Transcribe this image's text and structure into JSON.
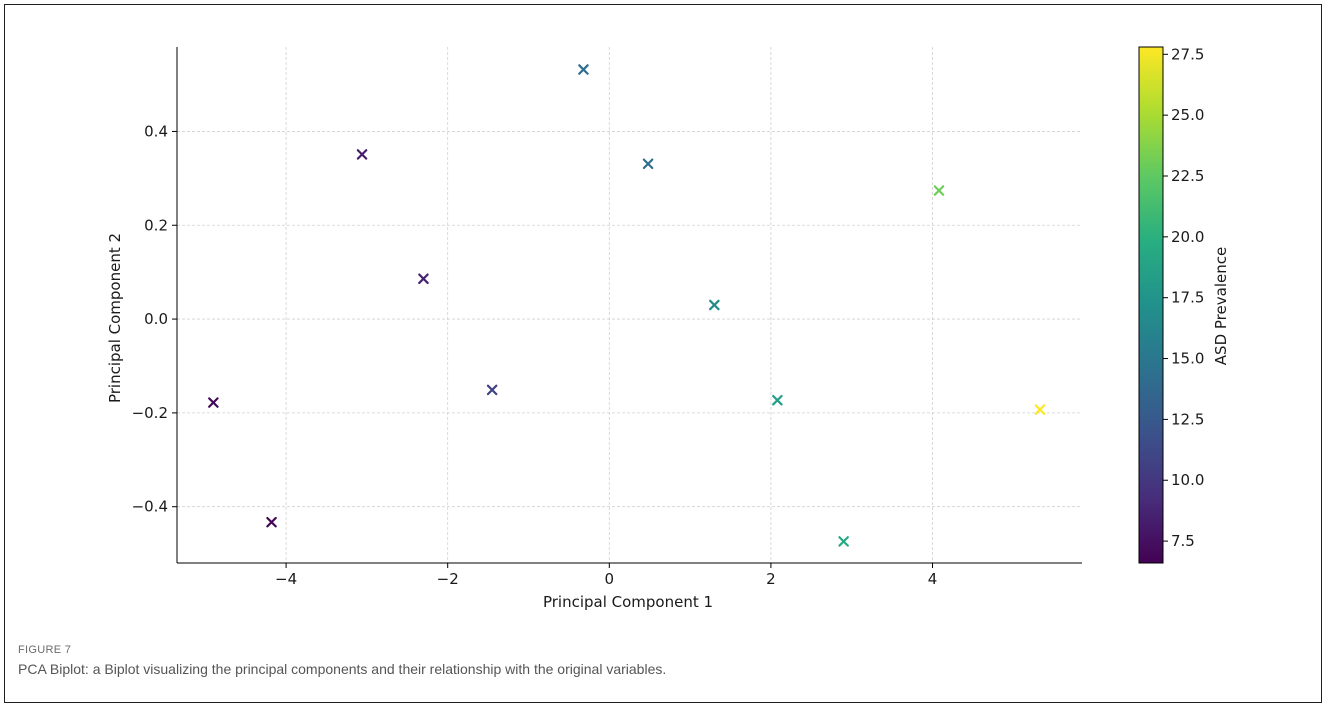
{
  "figure": {
    "label": "FIGURE 7",
    "caption": "PCA Biplot: a Biplot visualizing the principal components and their relationship with the original variables."
  },
  "chart_data": {
    "type": "scatter",
    "marker": "x",
    "xlabel": "Principal Component 1",
    "ylabel": "Principal Component 2",
    "xlim": [
      -5.35,
      5.85
    ],
    "ylim": [
      -0.52,
      0.58
    ],
    "xticks": [
      -4,
      -2,
      0,
      2,
      4
    ],
    "xtick_labels": [
      "−4",
      "−2",
      "0",
      "2",
      "4"
    ],
    "yticks": [
      -0.4,
      -0.2,
      0.0,
      0.2,
      0.4
    ],
    "ytick_labels": [
      "−0.4",
      "−0.2",
      "0.0",
      "0.2",
      "0.4"
    ],
    "grid": true,
    "colorbar": {
      "label": "ASD Prevalence",
      "colormap": "viridis",
      "range": [
        6.6,
        27.8
      ],
      "ticks": [
        7.5,
        10.0,
        12.5,
        15.0,
        17.5,
        20.0,
        22.5,
        25.0,
        27.5
      ],
      "tick_labels": [
        "7.5",
        "10.0",
        "12.5",
        "15.0",
        "17.5",
        "20.0",
        "22.5",
        "25.0",
        "27.5"
      ]
    },
    "points": [
      {
        "x": -4.9,
        "y": -0.178,
        "c": 7.0
      },
      {
        "x": -4.18,
        "y": -0.433,
        "c": 6.8
      },
      {
        "x": -3.06,
        "y": 0.351,
        "c": 8.3
      },
      {
        "x": -2.3,
        "y": 0.086,
        "c": 8.6
      },
      {
        "x": -1.45,
        "y": -0.151,
        "c": 10.8
      },
      {
        "x": -0.32,
        "y": 0.532,
        "c": 14.2
      },
      {
        "x": 0.48,
        "y": 0.331,
        "c": 14.4
      },
      {
        "x": 1.3,
        "y": 0.03,
        "c": 16.6
      },
      {
        "x": 2.08,
        "y": -0.173,
        "c": 18.2
      },
      {
        "x": 2.9,
        "y": -0.474,
        "c": 19.4
      },
      {
        "x": 4.08,
        "y": 0.274,
        "c": 23.0
      },
      {
        "x": 5.33,
        "y": -0.193,
        "c": 27.8
      }
    ]
  }
}
